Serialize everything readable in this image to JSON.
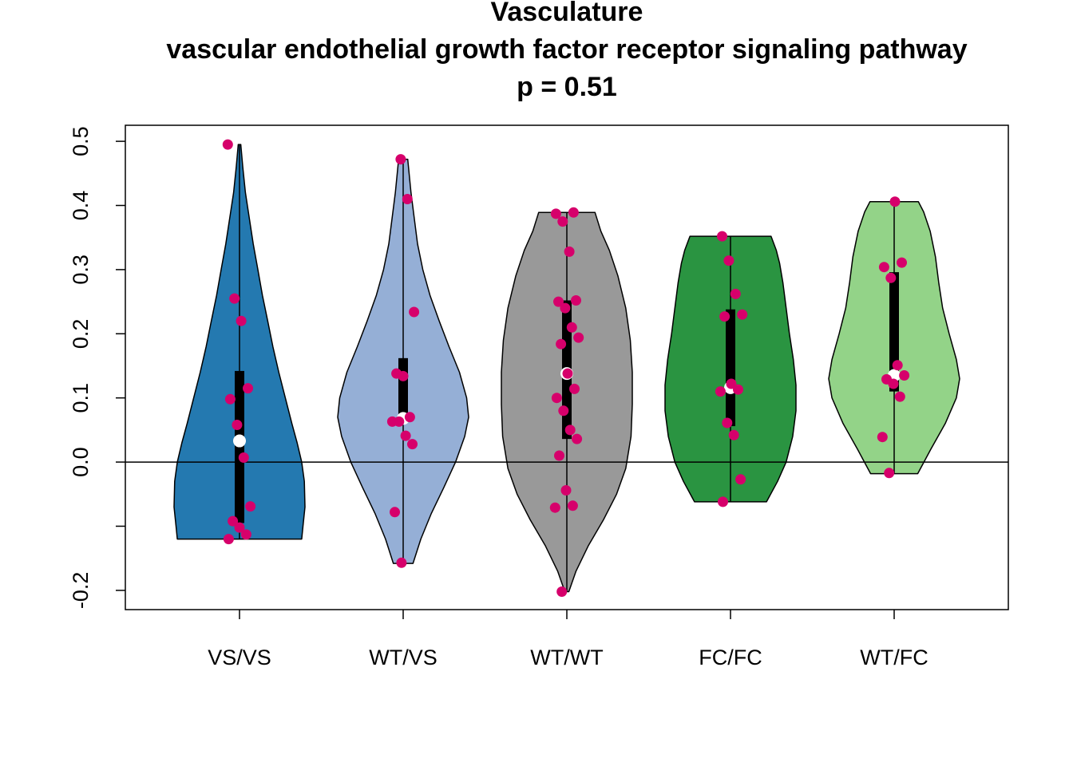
{
  "chart_data": {
    "type": "violin",
    "title": [
      "Vasculature",
      "vascular endothelial growth factor receptor signaling pathway",
      "p = 0.51"
    ],
    "xlabel": "",
    "ylabel": "",
    "ylim": [
      -0.23,
      0.525
    ],
    "y_ticks": [
      -0.2,
      -0.1,
      0.0,
      0.1,
      0.2,
      0.3,
      0.4,
      0.5
    ],
    "y_tick_labels": [
      "-0.2",
      "",
      "0.0",
      "0.1",
      "0.2",
      "0.3",
      "0.4",
      "0.5"
    ],
    "reference_line_y": 0.0,
    "point_color": "#d6006b",
    "median_color": "#ffffff",
    "categories": [
      "VS/VS",
      "WT/VS",
      "WT/WT",
      "FC/FC",
      "WT/FC"
    ],
    "groups": [
      {
        "label": "VS/VS",
        "color": "#2479b0",
        "min": -0.12,
        "q1": -0.095,
        "median": 0.033,
        "q3": 0.142,
        "max": 0.495,
        "density": [
          [
            -0.12,
            0.95
          ],
          [
            -0.1,
            0.97
          ],
          [
            -0.07,
            1.0
          ],
          [
            -0.03,
            0.99
          ],
          [
            0.0,
            0.95
          ],
          [
            0.03,
            0.88
          ],
          [
            0.06,
            0.8
          ],
          [
            0.1,
            0.7
          ],
          [
            0.14,
            0.6
          ],
          [
            0.18,
            0.51
          ],
          [
            0.22,
            0.43
          ],
          [
            0.26,
            0.35
          ],
          [
            0.3,
            0.28
          ],
          [
            0.34,
            0.21
          ],
          [
            0.38,
            0.15
          ],
          [
            0.42,
            0.09
          ],
          [
            0.46,
            0.05
          ],
          [
            0.495,
            0.02
          ]
        ],
        "points": [
          0.495,
          0.255,
          0.22,
          0.115,
          0.098,
          0.058,
          0.007,
          -0.069,
          -0.092,
          -0.102,
          -0.113,
          -0.12
        ]
      },
      {
        "label": "WT/VS",
        "color": "#95afd6",
        "min": -0.158,
        "q1": 0.062,
        "median": 0.068,
        "q3": 0.162,
        "max": 0.472,
        "density": [
          [
            -0.158,
            0.15
          ],
          [
            -0.12,
            0.27
          ],
          [
            -0.08,
            0.43
          ],
          [
            -0.04,
            0.62
          ],
          [
            0.0,
            0.8
          ],
          [
            0.04,
            0.94
          ],
          [
            0.07,
            1.0
          ],
          [
            0.1,
            0.97
          ],
          [
            0.14,
            0.86
          ],
          [
            0.18,
            0.7
          ],
          [
            0.22,
            0.55
          ],
          [
            0.26,
            0.41
          ],
          [
            0.3,
            0.3
          ],
          [
            0.34,
            0.22
          ],
          [
            0.38,
            0.17
          ],
          [
            0.42,
            0.12
          ],
          [
            0.472,
            0.07
          ]
        ],
        "points": [
          0.472,
          0.41,
          0.234,
          0.138,
          0.134,
          0.07,
          0.063,
          0.063,
          0.041,
          0.028,
          -0.078,
          -0.157
        ]
      },
      {
        "label": "WT/WT",
        "color": "#999999",
        "min": -0.202,
        "q1": 0.036,
        "median": 0.138,
        "q3": 0.252,
        "max": 0.389,
        "density": [
          [
            -0.202,
            0.03
          ],
          [
            -0.17,
            0.14
          ],
          [
            -0.13,
            0.33
          ],
          [
            -0.09,
            0.56
          ],
          [
            -0.05,
            0.76
          ],
          [
            -0.01,
            0.9
          ],
          [
            0.04,
            0.98
          ],
          [
            0.09,
            1.0
          ],
          [
            0.14,
            1.0
          ],
          [
            0.19,
            0.97
          ],
          [
            0.24,
            0.9
          ],
          [
            0.29,
            0.78
          ],
          [
            0.33,
            0.65
          ],
          [
            0.36,
            0.52
          ],
          [
            0.389,
            0.43
          ]
        ],
        "points": [
          0.389,
          0.387,
          0.375,
          0.328,
          0.252,
          0.25,
          0.24,
          0.21,
          0.194,
          0.184,
          0.138,
          0.114,
          0.1,
          0.08,
          0.05,
          0.036,
          0.01,
          -0.044,
          -0.068,
          -0.071,
          -0.202
        ]
      },
      {
        "label": "FC/FC",
        "color": "#2a9441",
        "min": -0.062,
        "q1": 0.056,
        "median": 0.116,
        "q3": 0.238,
        "max": 0.352,
        "density": [
          [
            -0.062,
            0.55
          ],
          [
            -0.03,
            0.72
          ],
          [
            0.0,
            0.85
          ],
          [
            0.04,
            0.95
          ],
          [
            0.08,
            1.0
          ],
          [
            0.12,
            1.0
          ],
          [
            0.16,
            0.96
          ],
          [
            0.2,
            0.9
          ],
          [
            0.24,
            0.85
          ],
          [
            0.28,
            0.8
          ],
          [
            0.31,
            0.75
          ],
          [
            0.33,
            0.7
          ],
          [
            0.352,
            0.62
          ]
        ],
        "points": [
          0.352,
          0.314,
          0.262,
          0.23,
          0.227,
          0.122,
          0.113,
          0.11,
          0.061,
          0.042,
          -0.027,
          -0.062
        ]
      },
      {
        "label": "WT/FC",
        "color": "#93d388",
        "min": -0.018,
        "q1": 0.11,
        "median": 0.135,
        "q3": 0.296,
        "max": 0.406,
        "density": [
          [
            -0.018,
            0.36
          ],
          [
            0.02,
            0.56
          ],
          [
            0.06,
            0.78
          ],
          [
            0.1,
            0.95
          ],
          [
            0.13,
            1.0
          ],
          [
            0.16,
            0.95
          ],
          [
            0.2,
            0.84
          ],
          [
            0.24,
            0.74
          ],
          [
            0.28,
            0.68
          ],
          [
            0.32,
            0.63
          ],
          [
            0.36,
            0.55
          ],
          [
            0.39,
            0.45
          ],
          [
            0.406,
            0.37
          ]
        ],
        "points": [
          0.406,
          0.311,
          0.304,
          0.287,
          0.151,
          0.135,
          0.129,
          0.122,
          0.102,
          0.039,
          -0.017
        ]
      }
    ]
  }
}
